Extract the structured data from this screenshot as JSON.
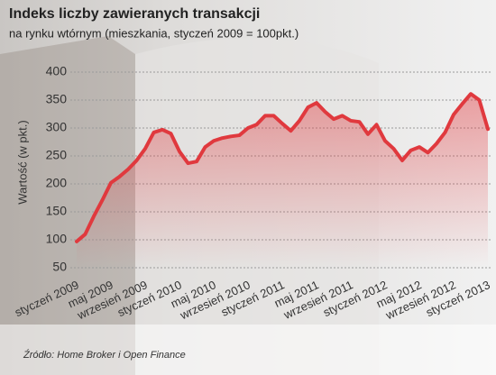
{
  "chart_data": {
    "type": "line",
    "title": "Indeks liczby zawieranych transakcji",
    "subtitle": "na rynku wtórnym (mieszkania, styczeń 2009 = 100pkt.)",
    "ylabel": "Wartość (w pkt.)",
    "source": "Źródło: Home Broker i Open Finance",
    "categories": [
      "styczeń 2009",
      null,
      null,
      null,
      "maj 2009",
      null,
      null,
      null,
      "wrzesień 2009",
      null,
      null,
      null,
      "styczeń 2010",
      null,
      null,
      null,
      "maj 2010",
      null,
      null,
      null,
      "wrzesień 2010",
      null,
      null,
      null,
      "styczeń 2011",
      null,
      null,
      null,
      "maj 2011",
      null,
      null,
      null,
      "wrzesień 2011",
      null,
      null,
      null,
      "styczeń 2012",
      null,
      null,
      null,
      "maj 2012",
      null,
      null,
      null,
      "wrzesień 2012",
      null,
      null,
      null,
      "styczeń 2013"
    ],
    "series": [
      {
        "name": "Indeks",
        "color": "#e0393e",
        "values": [
          97,
          110,
          142,
          171,
          202,
          213,
          226,
          242,
          263,
          292,
          297,
          290,
          258,
          237,
          240,
          266,
          277,
          282,
          285,
          287,
          300,
          306,
          322,
          322,
          308,
          295,
          313,
          337,
          345,
          329,
          316,
          322,
          313,
          311,
          289,
          306,
          277,
          263,
          242,
          260,
          266,
          256,
          272,
          292,
          324,
          343,
          361,
          350,
          298
        ]
      }
    ],
    "ylim": [
      50,
      400
    ],
    "yticks": [
      50,
      100,
      150,
      200,
      250,
      300,
      350,
      400
    ],
    "grid": true
  }
}
